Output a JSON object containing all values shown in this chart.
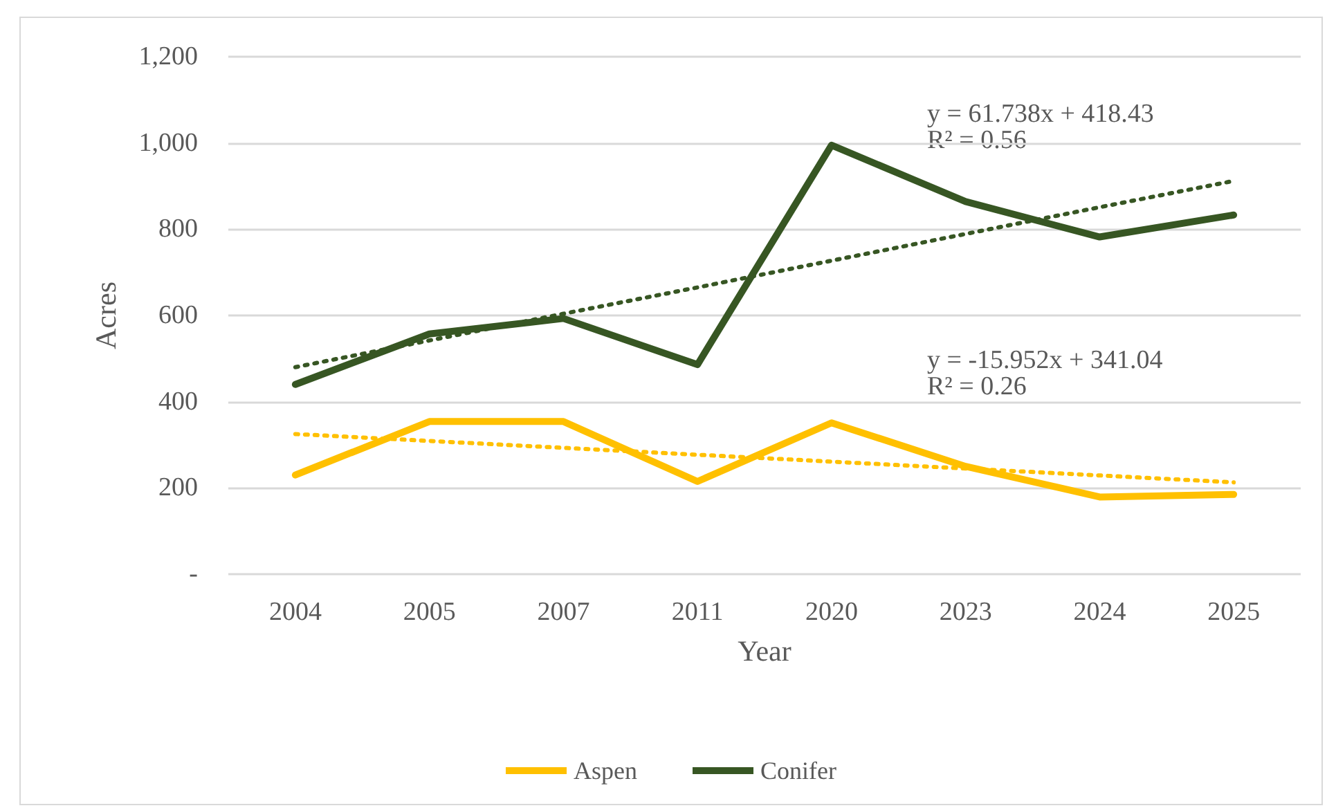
{
  "chart_data": {
    "type": "line",
    "xlabel": "Year",
    "ylabel": "Acres",
    "categories": [
      "2004",
      "2005",
      "2007",
      "2011",
      "2020",
      "2023",
      "2024",
      "2025"
    ],
    "series": [
      {
        "name": "Aspen",
        "color": "#ffc000",
        "values": [
          230,
          354,
          354,
          215,
          351,
          250,
          179,
          185
        ]
      },
      {
        "name": "Conifer",
        "color": "#375623",
        "values": [
          440,
          557,
          593,
          486,
          995,
          864,
          782,
          833
        ]
      },
      {
        "type": "line",
        "line_style": "dotted",
        "color": "#ffc000",
        "values": [
          325,
          309,
          293,
          277,
          261,
          245,
          229,
          213
        ]
      },
      {
        "type": "line",
        "line_style": "dotted",
        "color": "#375623",
        "values": [
          480,
          542,
          604,
          665,
          727,
          789,
          851,
          912
        ]
      }
    ],
    "ylim": [
      0,
      1200
    ],
    "yticks": [
      {
        "value": 0,
        "label": "-"
      },
      200,
      400,
      600,
      800,
      {
        "value": 1000,
        "label": "1,000"
      },
      {
        "value": 1200,
        "label": "1,200"
      }
    ],
    "grid": "y",
    "legend": "bottom",
    "marker": "none",
    "line_style": "solid",
    "annotations": [
      "y = 61.738x + 418.43\nR² = 0.56",
      "y = -15.952x + 341.04\nR² = 0.26"
    ]
  }
}
